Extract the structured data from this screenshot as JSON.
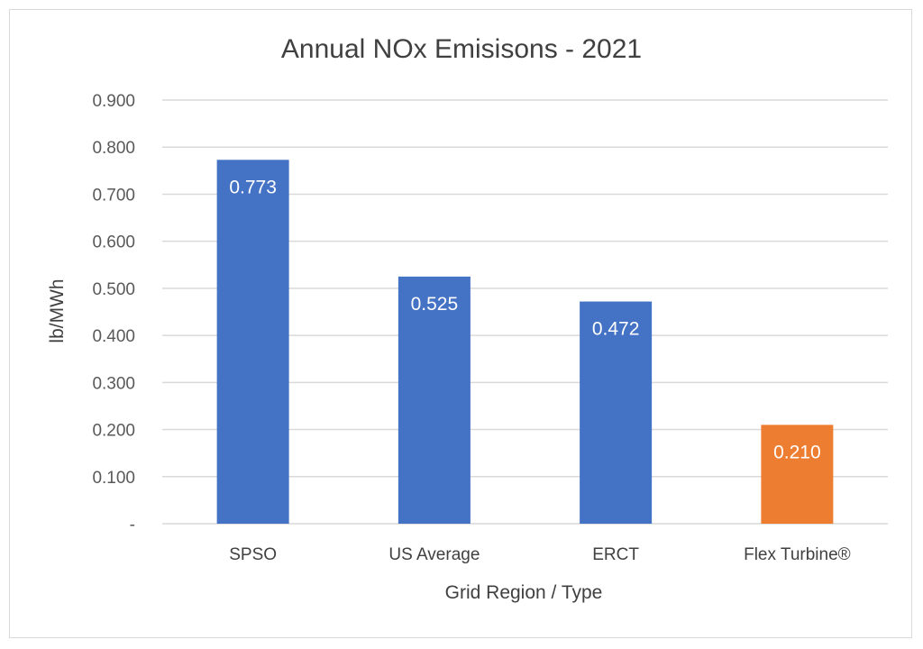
{
  "chart_data": {
    "type": "bar",
    "title": "Annual NOx Emisisons - 2021",
    "xlabel": "Grid Region / Type",
    "ylabel": "lb/MWh",
    "categories": [
      "SPSO",
      "US Average",
      "ERCT",
      "Flex Turbine®"
    ],
    "values": [
      0.773,
      0.525,
      0.472,
      0.21
    ],
    "data_labels": [
      "0.773",
      "0.525",
      "0.472",
      "0.210"
    ],
    "bar_colors": [
      "#4472c4",
      "#4472c4",
      "#4472c4",
      "#ed7d31"
    ],
    "ylim": [
      0,
      0.9
    ],
    "yticks": [
      0,
      0.1,
      0.2,
      0.3,
      0.4,
      0.5,
      0.6,
      0.7,
      0.8,
      0.9
    ],
    "ytick_labels": [
      "-",
      "0.100",
      "0.200",
      "0.300",
      "0.400",
      "0.500",
      "0.600",
      "0.700",
      "0.800",
      "0.900"
    ],
    "grid": true,
    "legend": "none"
  }
}
